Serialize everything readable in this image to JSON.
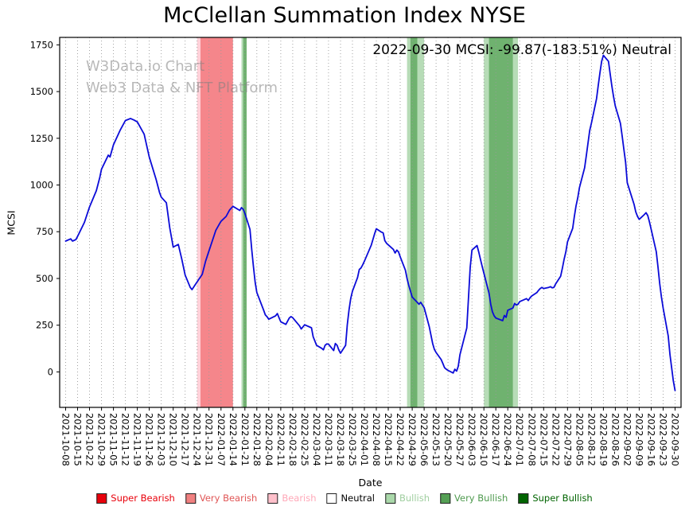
{
  "annotation": "2022-09-30 MCSI: -99.87(-183.51%) Neutral",
  "watermark": {
    "line1": "W3Data.io Chart",
    "line2": "Web3 Data & NFT Platform"
  },
  "chart_data": {
    "type": "line",
    "title": "McClellan Summation Index NYSE",
    "xlabel": "Date",
    "ylabel": "MCSI",
    "ylim": [
      -190,
      1790
    ],
    "yticks": [
      0,
      250,
      500,
      750,
      1000,
      1250,
      1500,
      1750
    ],
    "x_pad_days": 3.5,
    "grid": "vertical-dotted",
    "grid_color": "#999999",
    "x_tick_labels": [
      "2021-10-08",
      "2021-10-15",
      "2021-10-22",
      "2021-10-29",
      "2021-11-05",
      "2021-11-12",
      "2021-11-19",
      "2021-11-26",
      "2021-12-03",
      "2021-12-10",
      "2021-12-17",
      "2021-12-24",
      "2021-12-31",
      "2022-01-07",
      "2022-01-14",
      "2022-01-21",
      "2022-01-28",
      "2022-02-04",
      "2022-02-11",
      "2022-02-18",
      "2022-02-25",
      "2022-03-04",
      "2022-03-11",
      "2022-03-18",
      "2022-03-25",
      "2022-04-01",
      "2022-04-08",
      "2022-04-15",
      "2022-04-22",
      "2022-04-29",
      "2022-05-06",
      "2022-05-13",
      "2022-05-20",
      "2022-05-27",
      "2022-06-03",
      "2022-06-10",
      "2022-06-17",
      "2022-06-24",
      "2022-07-01",
      "2022-07-08",
      "2022-07-15",
      "2022-07-22",
      "2022-07-29",
      "2022-08-05",
      "2022-08-12",
      "2022-08-19",
      "2022-08-26",
      "2022-09-02",
      "2022-09-09",
      "2022-09-16",
      "2022-09-23",
      "2022-09-30"
    ],
    "series": [
      {
        "name": "MCSI",
        "color": "#0b0bd8",
        "points": [
          [
            "2021-10-08",
            700
          ],
          [
            "2021-10-11",
            712
          ],
          [
            "2021-10-12",
            700
          ],
          [
            "2021-10-14",
            708
          ],
          [
            "2021-10-15",
            725
          ],
          [
            "2021-10-19",
            800
          ],
          [
            "2021-10-22",
            882
          ],
          [
            "2021-10-26",
            970
          ],
          [
            "2021-10-28",
            1040
          ],
          [
            "2021-10-29",
            1085
          ],
          [
            "2021-11-02",
            1160
          ],
          [
            "2021-11-03",
            1150
          ],
          [
            "2021-11-05",
            1215
          ],
          [
            "2021-11-09",
            1295
          ],
          [
            "2021-11-12",
            1345
          ],
          [
            "2021-11-15",
            1356
          ],
          [
            "2021-11-17",
            1348
          ],
          [
            "2021-11-19",
            1338
          ],
          [
            "2021-11-23",
            1272
          ],
          [
            "2021-11-26",
            1150
          ],
          [
            "2021-11-30",
            1030
          ],
          [
            "2021-12-02",
            960
          ],
          [
            "2021-12-03",
            935
          ],
          [
            "2021-12-06",
            905
          ],
          [
            "2021-12-08",
            770
          ],
          [
            "2021-12-10",
            668
          ],
          [
            "2021-12-13",
            682
          ],
          [
            "2021-12-15",
            605
          ],
          [
            "2021-12-17",
            518
          ],
          [
            "2021-12-20",
            452
          ],
          [
            "2021-12-21",
            440
          ],
          [
            "2021-12-23",
            468
          ],
          [
            "2021-12-27",
            522
          ],
          [
            "2021-12-29",
            592
          ],
          [
            "2021-12-31",
            648
          ],
          [
            "2022-01-04",
            758
          ],
          [
            "2022-01-06",
            790
          ],
          [
            "2022-01-07",
            806
          ],
          [
            "2022-01-10",
            832
          ],
          [
            "2022-01-12",
            866
          ],
          [
            "2022-01-14",
            886
          ],
          [
            "2022-01-18",
            864
          ],
          [
            "2022-01-19",
            879
          ],
          [
            "2022-01-20",
            870
          ],
          [
            "2022-01-21",
            848
          ],
          [
            "2022-01-24",
            762
          ],
          [
            "2022-01-25",
            655
          ],
          [
            "2022-01-26",
            565
          ],
          [
            "2022-01-27",
            480
          ],
          [
            "2022-01-28",
            425
          ],
          [
            "2022-02-01",
            330
          ],
          [
            "2022-02-02",
            305
          ],
          [
            "2022-02-03",
            295
          ],
          [
            "2022-02-04",
            282
          ],
          [
            "2022-02-08",
            300
          ],
          [
            "2022-02-09",
            312
          ],
          [
            "2022-02-10",
            290
          ],
          [
            "2022-02-11",
            268
          ],
          [
            "2022-02-14",
            254
          ],
          [
            "2022-02-16",
            288
          ],
          [
            "2022-02-17",
            296
          ],
          [
            "2022-02-18",
            290
          ],
          [
            "2022-02-22",
            246
          ],
          [
            "2022-02-23",
            230
          ],
          [
            "2022-02-25",
            252
          ],
          [
            "2022-02-28",
            240
          ],
          [
            "2022-03-01",
            236
          ],
          [
            "2022-03-02",
            188
          ],
          [
            "2022-03-04",
            142
          ],
          [
            "2022-03-07",
            126
          ],
          [
            "2022-03-08",
            118
          ],
          [
            "2022-03-09",
            142
          ],
          [
            "2022-03-10",
            150
          ],
          [
            "2022-03-11",
            148
          ],
          [
            "2022-03-14",
            114
          ],
          [
            "2022-03-15",
            152
          ],
          [
            "2022-03-16",
            142
          ],
          [
            "2022-03-17",
            118
          ],
          [
            "2022-03-18",
            100
          ],
          [
            "2022-03-21",
            142
          ],
          [
            "2022-03-22",
            252
          ],
          [
            "2022-03-23",
            332
          ],
          [
            "2022-03-24",
            392
          ],
          [
            "2022-03-25",
            432
          ],
          [
            "2022-03-28",
            505
          ],
          [
            "2022-03-29",
            548
          ],
          [
            "2022-03-30",
            556
          ],
          [
            "2022-03-31",
            572
          ],
          [
            "2022-04-01",
            592
          ],
          [
            "2022-04-05",
            678
          ],
          [
            "2022-04-07",
            740
          ],
          [
            "2022-04-08",
            766
          ],
          [
            "2022-04-11",
            748
          ],
          [
            "2022-04-12",
            744
          ],
          [
            "2022-04-13",
            702
          ],
          [
            "2022-04-14",
            688
          ],
          [
            "2022-04-18",
            655
          ],
          [
            "2022-04-19",
            636
          ],
          [
            "2022-04-20",
            652
          ],
          [
            "2022-04-21",
            642
          ],
          [
            "2022-04-22",
            616
          ],
          [
            "2022-04-25",
            545
          ],
          [
            "2022-04-26",
            500
          ],
          [
            "2022-04-27",
            462
          ],
          [
            "2022-04-28",
            432
          ],
          [
            "2022-04-29",
            400
          ],
          [
            "2022-05-02",
            372
          ],
          [
            "2022-05-03",
            362
          ],
          [
            "2022-05-04",
            372
          ],
          [
            "2022-05-05",
            358
          ],
          [
            "2022-05-06",
            344
          ],
          [
            "2022-05-09",
            242
          ],
          [
            "2022-05-10",
            196
          ],
          [
            "2022-05-11",
            152
          ],
          [
            "2022-05-12",
            120
          ],
          [
            "2022-05-13",
            104
          ],
          [
            "2022-05-16",
            66
          ],
          [
            "2022-05-17",
            44
          ],
          [
            "2022-05-18",
            22
          ],
          [
            "2022-05-19",
            14
          ],
          [
            "2022-05-20",
            8
          ],
          [
            "2022-05-23",
            -6
          ],
          [
            "2022-05-24",
            14
          ],
          [
            "2022-05-25",
            4
          ],
          [
            "2022-05-26",
            30
          ],
          [
            "2022-05-27",
            92
          ],
          [
            "2022-05-31",
            235
          ],
          [
            "2022-06-01",
            400
          ],
          [
            "2022-06-02",
            560
          ],
          [
            "2022-06-03",
            652
          ],
          [
            "2022-06-06",
            676
          ],
          [
            "2022-06-07",
            642
          ],
          [
            "2022-06-08",
            602
          ],
          [
            "2022-06-09",
            565
          ],
          [
            "2022-06-10",
            528
          ],
          [
            "2022-06-13",
            422
          ],
          [
            "2022-06-14",
            362
          ],
          [
            "2022-06-15",
            322
          ],
          [
            "2022-06-16",
            300
          ],
          [
            "2022-06-17",
            288
          ],
          [
            "2022-06-21",
            274
          ],
          [
            "2022-06-22",
            302
          ],
          [
            "2022-06-23",
            292
          ],
          [
            "2022-06-24",
            330
          ],
          [
            "2022-06-27",
            342
          ],
          [
            "2022-06-28",
            366
          ],
          [
            "2022-06-29",
            358
          ],
          [
            "2022-06-30",
            362
          ],
          [
            "2022-07-01",
            376
          ],
          [
            "2022-07-05",
            392
          ],
          [
            "2022-07-06",
            382
          ],
          [
            "2022-07-07",
            396
          ],
          [
            "2022-07-08",
            406
          ],
          [
            "2022-07-11",
            424
          ],
          [
            "2022-07-12",
            436
          ],
          [
            "2022-07-13",
            446
          ],
          [
            "2022-07-14",
            452
          ],
          [
            "2022-07-15",
            446
          ],
          [
            "2022-07-18",
            452
          ],
          [
            "2022-07-19",
            456
          ],
          [
            "2022-07-20",
            450
          ],
          [
            "2022-07-21",
            452
          ],
          [
            "2022-07-22",
            470
          ],
          [
            "2022-07-25",
            512
          ],
          [
            "2022-07-26",
            556
          ],
          [
            "2022-07-27",
            602
          ],
          [
            "2022-07-28",
            642
          ],
          [
            "2022-07-29",
            696
          ],
          [
            "2022-08-01",
            768
          ],
          [
            "2022-08-02",
            832
          ],
          [
            "2022-08-03",
            888
          ],
          [
            "2022-08-04",
            932
          ],
          [
            "2022-08-05",
            986
          ],
          [
            "2022-08-08",
            1092
          ],
          [
            "2022-08-09",
            1156
          ],
          [
            "2022-08-10",
            1226
          ],
          [
            "2022-08-11",
            1292
          ],
          [
            "2022-08-12",
            1332
          ],
          [
            "2022-08-15",
            1462
          ],
          [
            "2022-08-16",
            1532
          ],
          [
            "2022-08-17",
            1602
          ],
          [
            "2022-08-18",
            1662
          ],
          [
            "2022-08-19",
            1694
          ],
          [
            "2022-08-22",
            1662
          ],
          [
            "2022-08-23",
            1592
          ],
          [
            "2022-08-24",
            1528
          ],
          [
            "2022-08-25",
            1472
          ],
          [
            "2022-08-26",
            1422
          ],
          [
            "2022-08-29",
            1330
          ],
          [
            "2022-08-30",
            1262
          ],
          [
            "2022-08-31",
            1192
          ],
          [
            "2022-09-01",
            1122
          ],
          [
            "2022-09-02",
            1012
          ],
          [
            "2022-09-06",
            896
          ],
          [
            "2022-09-07",
            856
          ],
          [
            "2022-09-08",
            832
          ],
          [
            "2022-09-09",
            816
          ],
          [
            "2022-09-12",
            842
          ],
          [
            "2022-09-13",
            852
          ],
          [
            "2022-09-14",
            836
          ],
          [
            "2022-09-15",
            802
          ],
          [
            "2022-09-16",
            762
          ],
          [
            "2022-09-19",
            642
          ],
          [
            "2022-09-20",
            562
          ],
          [
            "2022-09-21",
            472
          ],
          [
            "2022-09-22",
            402
          ],
          [
            "2022-09-23",
            342
          ],
          [
            "2022-09-26",
            192
          ],
          [
            "2022-09-27",
            92
          ],
          [
            "2022-09-28",
            22
          ],
          [
            "2022-09-29",
            -48
          ],
          [
            "2022-09-30",
            -99.87
          ]
        ]
      }
    ],
    "bands": [
      {
        "category": "bearish",
        "from": "2021-12-24",
        "to": "2021-12-26"
      },
      {
        "category": "very-bearish",
        "from": "2021-12-26",
        "to": "2022-01-14"
      },
      {
        "category": "bullish",
        "from": "2022-01-19",
        "to": "2022-01-22"
      },
      {
        "category": "very-bullish",
        "from": "2022-01-20",
        "to": "2022-01-22"
      },
      {
        "category": "bullish",
        "from": "2022-04-26",
        "to": "2022-05-06"
      },
      {
        "category": "very-bullish",
        "from": "2022-04-28",
        "to": "2022-05-02"
      },
      {
        "category": "bullish",
        "from": "2022-06-10",
        "to": "2022-06-30"
      },
      {
        "category": "very-bullish",
        "from": "2022-06-13",
        "to": "2022-06-27"
      }
    ],
    "band_colors": {
      "super-bearish": "#e8000b",
      "very-bearish": "#f5868b",
      "bearish": "#ffd0d8",
      "neutral": "#ffffff",
      "bullish": "#b7dcb7",
      "very-bullish": "#6fb26f",
      "super-bullish": "#006400"
    },
    "legend": {
      "position": "bottom",
      "entries": [
        {
          "label": "Super Bearish",
          "color": "#e8000b",
          "text_color": "#e8000b"
        },
        {
          "label": "Very Bearish",
          "color": "#f08080",
          "text_color": "#e05555"
        },
        {
          "label": "Bearish",
          "color": "#ffc0cb",
          "text_color": "#ffa8b8"
        },
        {
          "label": "Neutral",
          "color": "#ffffff",
          "text_color": "#000000"
        },
        {
          "label": "Bullish",
          "color": "#aad8aa",
          "text_color": "#9fce9f"
        },
        {
          "label": "Very Bullish",
          "color": "#55a055",
          "text_color": "#4e9a4e"
        },
        {
          "label": "Super Bullish",
          "color": "#006400",
          "text_color": "#006400"
        }
      ]
    }
  }
}
